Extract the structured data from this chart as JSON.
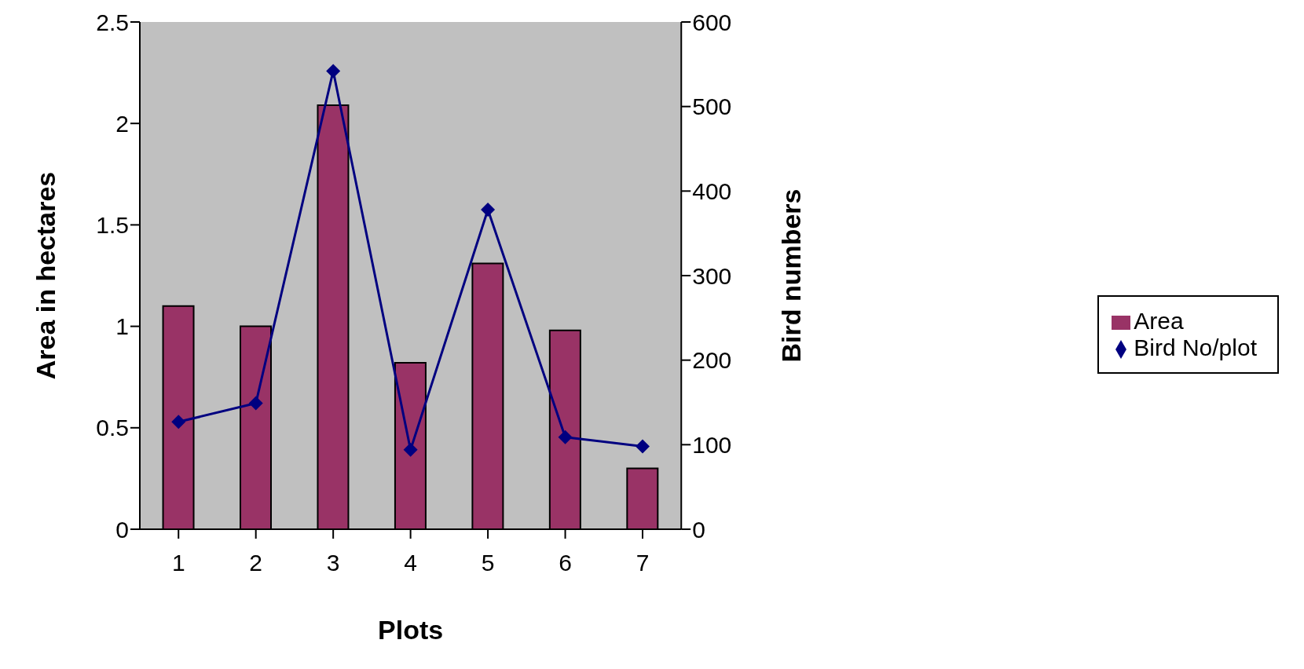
{
  "chart_data": {
    "type": "bar",
    "xlabel": "Plots",
    "ylabel": "Area in hectares",
    "y2label": "Bird numbers",
    "categories": [
      "1",
      "2",
      "3",
      "4",
      "5",
      "6",
      "7"
    ],
    "series": [
      {
        "name": "Area",
        "color": "#993366",
        "values": [
          1.1,
          1.0,
          2.09,
          0.82,
          1.31,
          0.98,
          0.3
        ]
      },
      {
        "name": "Bird No/plot",
        "type": "line",
        "axis": "y2",
        "color": "#000080",
        "marker": "diamond",
        "values": [
          127,
          149,
          542,
          94,
          378,
          109,
          98
        ]
      }
    ],
    "ylim": [
      0,
      2.5
    ],
    "yticks": [
      0,
      0.5,
      1,
      1.5,
      2,
      2.5
    ],
    "y2lim": [
      0,
      600
    ],
    "y2ticks": [
      0,
      100,
      200,
      300,
      400,
      500,
      600
    ],
    "grid": false,
    "legend": "right"
  }
}
